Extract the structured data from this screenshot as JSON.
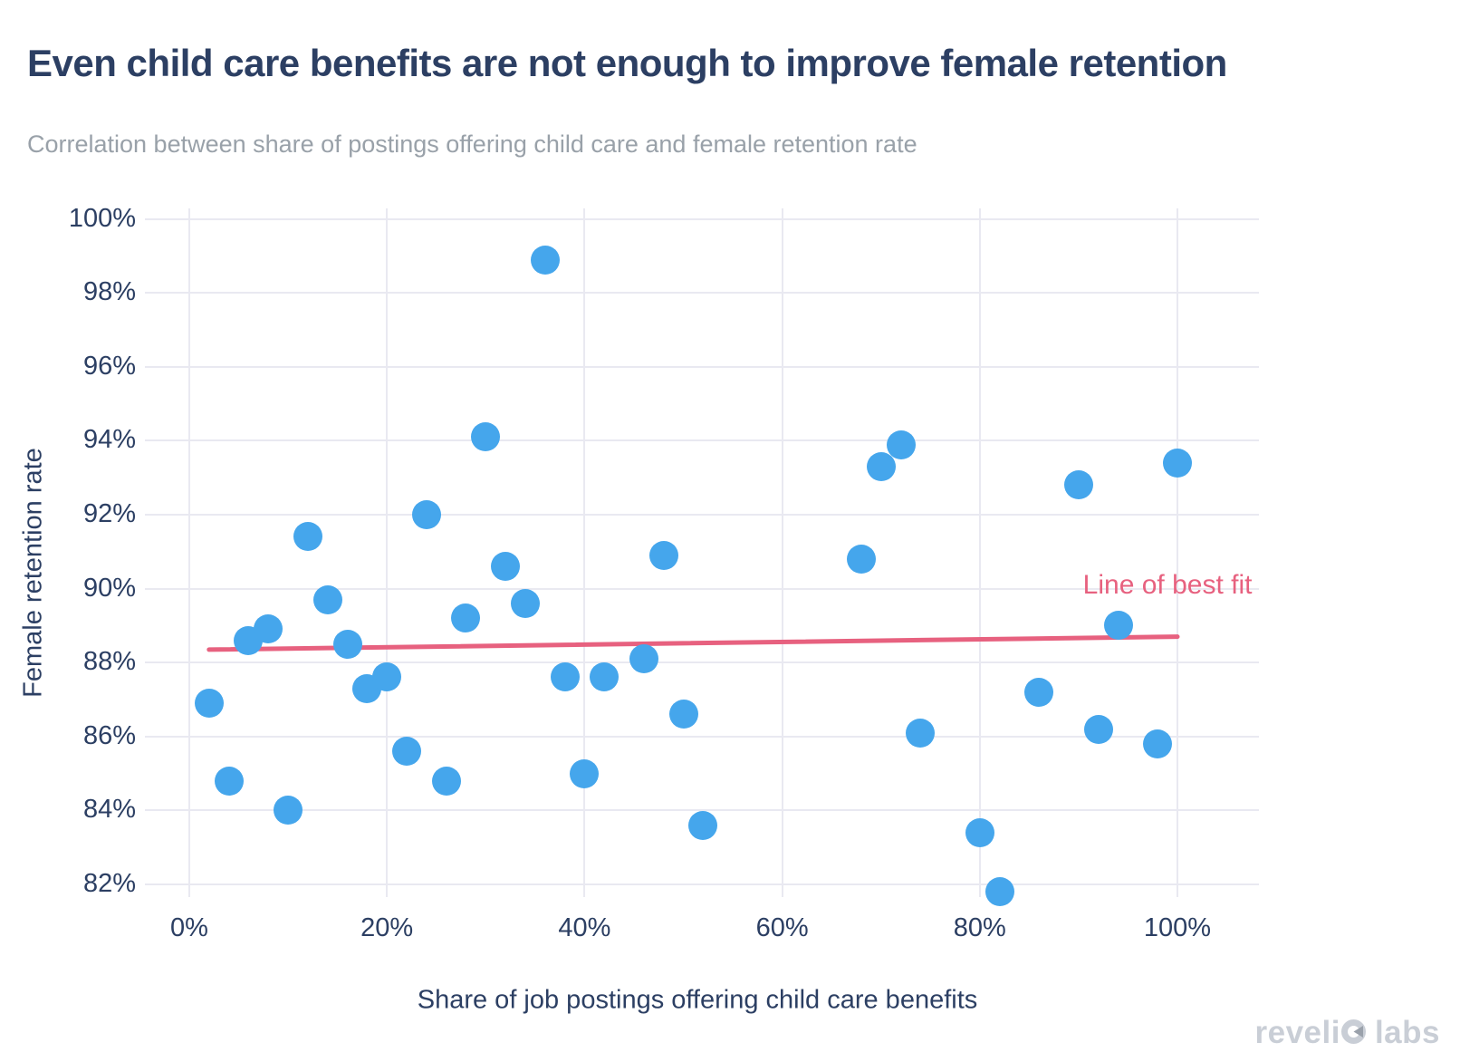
{
  "header": {
    "title": "Even child care benefits are not enough to improve female retention",
    "subtitle": "Correlation between share of postings offering child care and female retention rate"
  },
  "chart_data": {
    "type": "scatter",
    "title": "Even child care benefits are not enough to improve female retention",
    "subtitle": "Correlation between share of postings offering child care and female retention rate",
    "xlabel": "Share of job postings offering child care benefits",
    "ylabel": "Female retention rate",
    "xlim": [
      0,
      100
    ],
    "ylim": [
      82,
      100
    ],
    "grid": true,
    "x_tick_values": [
      0,
      20,
      40,
      60,
      80,
      100
    ],
    "x_tick_labels": [
      "0%",
      "20%",
      "40%",
      "60%",
      "80%",
      "100%"
    ],
    "y_tick_values": [
      100,
      98,
      96,
      94,
      92,
      90,
      88,
      86,
      84,
      82
    ],
    "y_tick_labels": [
      "100%",
      "98%",
      "96%",
      "94%",
      "92%",
      "90%",
      "88%",
      "86%",
      "84%",
      "82%"
    ],
    "points": [
      [
        2,
        86.9
      ],
      [
        4,
        84.8
      ],
      [
        6,
        88.6
      ],
      [
        8,
        88.9
      ],
      [
        10,
        84.0
      ],
      [
        12,
        91.4
      ],
      [
        14,
        89.7
      ],
      [
        16,
        88.5
      ],
      [
        18,
        87.3
      ],
      [
        20,
        87.6
      ],
      [
        22,
        85.6
      ],
      [
        24,
        92.0
      ],
      [
        26,
        84.8
      ],
      [
        28,
        89.2
      ],
      [
        30,
        94.1
      ],
      [
        32,
        90.6
      ],
      [
        34,
        89.6
      ],
      [
        36,
        98.9
      ],
      [
        38,
        87.6
      ],
      [
        40,
        85.0
      ],
      [
        42,
        87.6
      ],
      [
        46,
        88.1
      ],
      [
        48,
        90.9
      ],
      [
        50,
        86.6
      ],
      [
        52,
        83.6
      ],
      [
        68,
        90.8
      ],
      [
        70,
        93.3
      ],
      [
        72,
        93.9
      ],
      [
        74,
        86.1
      ],
      [
        80,
        83.4
      ],
      [
        82,
        81.8
      ],
      [
        86,
        87.2
      ],
      [
        90,
        92.8
      ],
      [
        92,
        86.2
      ],
      [
        94,
        89.0
      ],
      [
        98,
        85.8
      ],
      [
        100,
        93.4
      ]
    ],
    "best_fit": {
      "label": "Line of best fit",
      "x1": 2,
      "y1": 88.35,
      "x2": 100,
      "y2": 88.7,
      "label_x": 99,
      "label_y": 90.1
    },
    "legend": "none"
  },
  "branding": {
    "logo_part1": "reveli",
    "logo_o": "o",
    "logo_part2": "labs",
    "logo_full": "revelio labs"
  },
  "colors": {
    "point_blue": "#45a6ec",
    "fit_pink": "#e7617f",
    "text_navy": "#2c3f63",
    "subtitle_gray": "#99a1a9",
    "grid_gray": "#e9e9f1",
    "logo_gray": "#c9ced6",
    "background": "#ffffff"
  }
}
